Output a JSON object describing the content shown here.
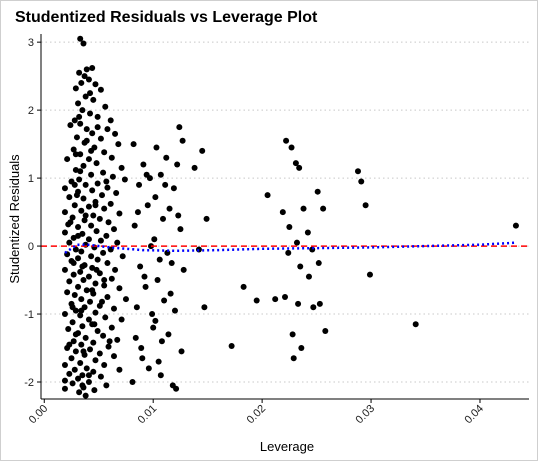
{
  "chart_data": {
    "type": "scatter",
    "title": "Studentized Residuals vs Leverage Plot",
    "xlabel": "Leverage",
    "ylabel": "Studentized Residuals",
    "xlim": [
      -0.0003,
      0.0445
    ],
    "ylim": [
      -2.25,
      3.12
    ],
    "xticks": [
      0.0,
      0.01,
      0.02,
      0.03,
      0.04
    ],
    "xtick_labels": [
      "0.00",
      "0.01",
      "0.02",
      "0.03",
      "0.04"
    ],
    "yticks": [
      -2,
      -1,
      0,
      1,
      2,
      3
    ],
    "ytick_labels": [
      "-2",
      "-1",
      "0",
      "1",
      "2",
      "3"
    ],
    "grid": "horizontal dotted",
    "legend": "none",
    "colors": {
      "points": "#000000",
      "reference_line": "#ff0000",
      "smooth_line": "#0000ff",
      "grid": "#c8c8c8"
    },
    "reference_line": {
      "y": 0,
      "style": "dashed"
    },
    "smooth_line": {
      "style": "dotted",
      "x": [
        0.0019,
        0.003,
        0.004,
        0.006,
        0.009,
        0.012,
        0.016,
        0.02,
        0.025,
        0.03,
        0.035,
        0.04,
        0.0433
      ],
      "y": [
        -0.1,
        0.02,
        0.02,
        -0.02,
        -0.06,
        -0.07,
        -0.06,
        -0.04,
        -0.03,
        -0.02,
        0.0,
        0.02,
        0.05
      ]
    },
    "points": [
      [
        0.0033,
        3.05
      ],
      [
        0.0036,
        2.98
      ],
      [
        0.0044,
        2.62
      ],
      [
        0.0032,
        2.55
      ],
      [
        0.0037,
        2.5
      ],
      [
        0.0041,
        2.45
      ],
      [
        0.0034,
        2.4
      ],
      [
        0.0047,
        2.38
      ],
      [
        0.0029,
        2.32
      ],
      [
        0.0052,
        2.3
      ],
      [
        0.0038,
        2.2
      ],
      [
        0.0045,
        2.15
      ],
      [
        0.0031,
        2.1
      ],
      [
        0.0056,
        2.05
      ],
      [
        0.0035,
        2.0
      ],
      [
        0.0042,
        1.95
      ],
      [
        0.0049,
        1.9
      ],
      [
        0.0028,
        1.85
      ],
      [
        0.0061,
        1.85
      ],
      [
        0.0033,
        1.8
      ],
      [
        0.0024,
        1.78
      ],
      [
        0.0039,
        1.72
      ],
      [
        0.0058,
        1.72
      ],
      [
        0.0044,
        1.66
      ],
      [
        0.0065,
        1.65
      ],
      [
        0.003,
        1.6
      ],
      [
        0.0052,
        1.58
      ],
      [
        0.0037,
        1.52
      ],
      [
        0.0068,
        1.5
      ],
      [
        0.0046,
        1.45
      ],
      [
        0.0027,
        1.42
      ],
      [
        0.0055,
        1.38
      ],
      [
        0.0033,
        1.35
      ],
      [
        0.0062,
        1.3
      ],
      [
        0.0041,
        1.28
      ],
      [
        0.0021,
        1.28
      ],
      [
        0.0048,
        1.22
      ],
      [
        0.0036,
        1.18
      ],
      [
        0.0071,
        1.15
      ],
      [
        0.0029,
        1.12
      ],
      [
        0.0054,
        1.08
      ],
      [
        0.0043,
        1.05
      ],
      [
        0.0063,
        1.02
      ],
      [
        0.0032,
        0.98
      ],
      [
        0.0074,
        0.98
      ],
      [
        0.0025,
        0.95
      ],
      [
        0.0049,
        0.92
      ],
      [
        0.0038,
        0.9
      ],
      [
        0.0058,
        0.86
      ],
      [
        0.0019,
        0.85
      ],
      [
        0.0044,
        0.82
      ],
      [
        0.0031,
        0.8
      ],
      [
        0.0066,
        0.78
      ],
      [
        0.0053,
        0.75
      ],
      [
        0.0023,
        0.72
      ],
      [
        0.0036,
        0.7
      ],
      [
        0.0047,
        0.65
      ],
      [
        0.0061,
        0.62
      ],
      [
        0.0028,
        0.6
      ],
      [
        0.0041,
        0.58
      ],
      [
        0.0055,
        0.55
      ],
      [
        0.0034,
        0.52
      ],
      [
        0.0019,
        0.5
      ],
      [
        0.0069,
        0.48
      ],
      [
        0.0045,
        0.45
      ],
      [
        0.0026,
        0.42
      ],
      [
        0.0051,
        0.4
      ],
      [
        0.0037,
        0.38
      ],
      [
        0.0059,
        0.35
      ],
      [
        0.0022,
        0.32
      ],
      [
        0.0043,
        0.3
      ],
      [
        0.0031,
        0.28
      ],
      [
        0.0064,
        0.25
      ],
      [
        0.0048,
        0.22
      ],
      [
        0.0019,
        0.2
      ],
      [
        0.0035,
        0.18
      ],
      [
        0.0057,
        0.15
      ],
      [
        0.0027,
        0.12
      ],
      [
        0.0041,
        0.1
      ],
      [
        0.0052,
        0.08
      ],
      [
        0.0023,
        0.05
      ],
      [
        0.0067,
        0.05
      ],
      [
        0.0038,
        0.02
      ],
      [
        0.0046,
        -0.02
      ],
      [
        0.0029,
        -0.05
      ],
      [
        0.0061,
        -0.05
      ],
      [
        0.0034,
        -0.08
      ],
      [
        0.0054,
        -0.1
      ],
      [
        0.0021,
        -0.12
      ],
      [
        0.0043,
        -0.15
      ],
      [
        0.0072,
        -0.15
      ],
      [
        0.0031,
        -0.18
      ],
      [
        0.0049,
        -0.2
      ],
      [
        0.0025,
        -0.22
      ],
      [
        0.0058,
        -0.25
      ],
      [
        0.0037,
        -0.28
      ],
      [
        0.0044,
        -0.32
      ],
      [
        0.0019,
        -0.35
      ],
      [
        0.0065,
        -0.35
      ],
      [
        0.0033,
        -0.38
      ],
      [
        0.0051,
        -0.4
      ],
      [
        0.0027,
        -0.42
      ],
      [
        0.0041,
        -0.45
      ],
      [
        0.0062,
        -0.48
      ],
      [
        0.0036,
        -0.5
      ],
      [
        0.0023,
        -0.52
      ],
      [
        0.0047,
        -0.55
      ],
      [
        0.0055,
        -0.58
      ],
      [
        0.0031,
        -0.6
      ],
      [
        0.0069,
        -0.62
      ],
      [
        0.0039,
        -0.65
      ],
      [
        0.0021,
        -0.68
      ],
      [
        0.0045,
        -0.7
      ],
      [
        0.0028,
        -0.72
      ],
      [
        0.0058,
        -0.75
      ],
      [
        0.0034,
        -0.78
      ],
      [
        0.0075,
        -0.78
      ],
      [
        0.0042,
        -0.82
      ],
      [
        0.0025,
        -0.85
      ],
      [
        0.0051,
        -0.88
      ],
      [
        0.0037,
        -0.9
      ],
      [
        0.0064,
        -0.92
      ],
      [
        0.0029,
        -0.95
      ],
      [
        0.0047,
        -0.98
      ],
      [
        0.0019,
        -1.0
      ],
      [
        0.0033,
        -1.02
      ],
      [
        0.0056,
        -1.05
      ],
      [
        0.0041,
        -1.08
      ],
      [
        0.0071,
        -1.08
      ],
      [
        0.0026,
        -1.12
      ],
      [
        0.0044,
        -1.15
      ],
      [
        0.0035,
        -1.18
      ],
      [
        0.0062,
        -1.2
      ],
      [
        0.0022,
        -1.22
      ],
      [
        0.0049,
        -1.25
      ],
      [
        0.0031,
        -1.28
      ],
      [
        0.0054,
        -1.32
      ],
      [
        0.0038,
        -1.35
      ],
      [
        0.0067,
        -1.38
      ],
      [
        0.0027,
        -1.4
      ],
      [
        0.0045,
        -1.42
      ],
      [
        0.0034,
        -1.45
      ],
      [
        0.0059,
        -1.48
      ],
      [
        0.0021,
        -1.5
      ],
      [
        0.0042,
        -1.52
      ],
      [
        0.0029,
        -1.55
      ],
      [
        0.0051,
        -1.58
      ],
      [
        0.0037,
        -1.6
      ],
      [
        0.0064,
        -1.62
      ],
      [
        0.0025,
        -1.65
      ],
      [
        0.0047,
        -1.68
      ],
      [
        0.0033,
        -1.72
      ],
      [
        0.0019,
        -1.75
      ],
      [
        0.0055,
        -1.75
      ],
      [
        0.0039,
        -1.8
      ],
      [
        0.0028,
        -1.82
      ],
      [
        0.0069,
        -1.82
      ],
      [
        0.0045,
        -1.85
      ],
      [
        0.0023,
        -1.88
      ],
      [
        0.0035,
        -1.9
      ],
      [
        0.0052,
        -1.92
      ],
      [
        0.0031,
        -1.95
      ],
      [
        0.0019,
        -1.98
      ],
      [
        0.0041,
        -2.0
      ],
      [
        0.0026,
        -2.02
      ],
      [
        0.0057,
        -2.05
      ],
      [
        0.0036,
        -2.08
      ],
      [
        0.0019,
        -2.1
      ],
      [
        0.0046,
        -2.12
      ],
      [
        0.0032,
        -2.15
      ],
      [
        0.0038,
        -2.2
      ],
      [
        0.0024,
        0.35
      ],
      [
        0.0028,
        0.9
      ],
      [
        0.0032,
        1.9
      ],
      [
        0.0039,
        2.6
      ],
      [
        0.0043,
        1.4
      ],
      [
        0.0035,
        -0.3
      ],
      [
        0.0041,
        -1.9
      ],
      [
        0.0029,
        -1.3
      ],
      [
        0.0047,
        0.6
      ],
      [
        0.0033,
        1.1
      ],
      [
        0.0055,
        -0.5
      ],
      [
        0.0026,
        -0.9
      ],
      [
        0.0038,
        0.45
      ],
      [
        0.0044,
        -0.65
      ],
      [
        0.003,
        0.75
      ],
      [
        0.0036,
        -1.55
      ],
      [
        0.0049,
        1.75
      ],
      [
        0.0027,
        -0.25
      ],
      [
        0.0042,
        2.25
      ],
      [
        0.0034,
        -0.95
      ],
      [
        0.006,
        -1.4
      ],
      [
        0.0031,
        0.15
      ],
      [
        0.0046,
        -1.15
      ],
      [
        0.0039,
        1.55
      ],
      [
        0.0023,
        -1.45
      ],
      [
        0.0057,
        0.95
      ],
      [
        0.0035,
        -2.05
      ],
      [
        0.0048,
        -0.35
      ],
      [
        0.0029,
        1.35
      ],
      [
        0.0053,
        -0.82
      ],
      [
        0.0082,
        1.5
      ],
      [
        0.0091,
        1.2
      ],
      [
        0.0087,
        0.9
      ],
      [
        0.0095,
        0.6
      ],
      [
        0.0083,
        0.3
      ],
      [
        0.0098,
        0.0
      ],
      [
        0.0088,
        -0.3
      ],
      [
        0.0093,
        -0.6
      ],
      [
        0.0085,
        -0.9
      ],
      [
        0.01,
        -1.2
      ],
      [
        0.0089,
        -1.5
      ],
      [
        0.0096,
        -1.8
      ],
      [
        0.0081,
        -2.0
      ],
      [
        0.0103,
        1.45
      ],
      [
        0.0107,
        1.05
      ],
      [
        0.0102,
        0.72
      ],
      [
        0.0109,
        0.4
      ],
      [
        0.0101,
        0.1
      ],
      [
        0.0106,
        -0.2
      ],
      [
        0.0104,
        -0.5
      ],
      [
        0.011,
        -0.8
      ],
      [
        0.0102,
        -1.1
      ],
      [
        0.0108,
        -1.4
      ],
      [
        0.0105,
        -1.7
      ],
      [
        0.0112,
        1.3
      ],
      [
        0.0115,
        0.55
      ],
      [
        0.0113,
        -0.1
      ],
      [
        0.0116,
        -0.7
      ],
      [
        0.0114,
        -1.3
      ],
      [
        0.0118,
        -2.05
      ],
      [
        0.0121,
        -2.1
      ],
      [
        0.0124,
        1.75
      ],
      [
        0.0127,
        1.55
      ],
      [
        0.0122,
        1.2
      ],
      [
        0.0119,
        0.85
      ],
      [
        0.0125,
        0.25
      ],
      [
        0.0128,
        -0.35
      ],
      [
        0.012,
        -0.95
      ],
      [
        0.0126,
        -1.55
      ],
      [
        0.0094,
        1.05
      ],
      [
        0.0086,
        0.5
      ],
      [
        0.0092,
        -0.45
      ],
      [
        0.0099,
        -1.0
      ],
      [
        0.009,
        -1.65
      ],
      [
        0.0097,
        1.0
      ],
      [
        0.0111,
        0.9
      ],
      [
        0.0117,
        -0.25
      ],
      [
        0.0084,
        -1.35
      ],
      [
        0.0107,
        -1.9
      ],
      [
        0.0123,
        0.45
      ],
      [
        0.0145,
        1.4
      ],
      [
        0.0138,
        1.15
      ],
      [
        0.0149,
        0.4
      ],
      [
        0.0142,
        -0.05
      ],
      [
        0.0147,
        -0.9
      ],
      [
        0.0172,
        -1.47
      ],
      [
        0.0183,
        -0.6
      ],
      [
        0.0195,
        -0.8
      ],
      [
        0.0205,
        0.75
      ],
      [
        0.0212,
        -0.78
      ],
      [
        0.0222,
        1.55
      ],
      [
        0.0227,
        1.45
      ],
      [
        0.0231,
        1.22
      ],
      [
        0.0219,
        0.5
      ],
      [
        0.0225,
        0.28
      ],
      [
        0.0232,
        0.05
      ],
      [
        0.0224,
        -0.1
      ],
      [
        0.0235,
        -0.3
      ],
      [
        0.0221,
        -0.75
      ],
      [
        0.0233,
        -0.85
      ],
      [
        0.0228,
        -1.3
      ],
      [
        0.0236,
        -1.5
      ],
      [
        0.0229,
        -1.65
      ],
      [
        0.0234,
        1.15
      ],
      [
        0.0238,
        0.55
      ],
      [
        0.0242,
        0.2
      ],
      [
        0.0246,
        -0.05
      ],
      [
        0.0243,
        -0.45
      ],
      [
        0.0247,
        -0.9
      ],
      [
        0.0251,
        0.8
      ],
      [
        0.0256,
        0.55
      ],
      [
        0.0253,
        -0.85
      ],
      [
        0.0258,
        -1.25
      ],
      [
        0.0252,
        -0.25
      ],
      [
        0.0288,
        1.1
      ],
      [
        0.0291,
        0.95
      ],
      [
        0.0295,
        0.6
      ],
      [
        0.0299,
        -0.42
      ],
      [
        0.0341,
        -1.15
      ],
      [
        0.0433,
        0.3
      ]
    ]
  }
}
